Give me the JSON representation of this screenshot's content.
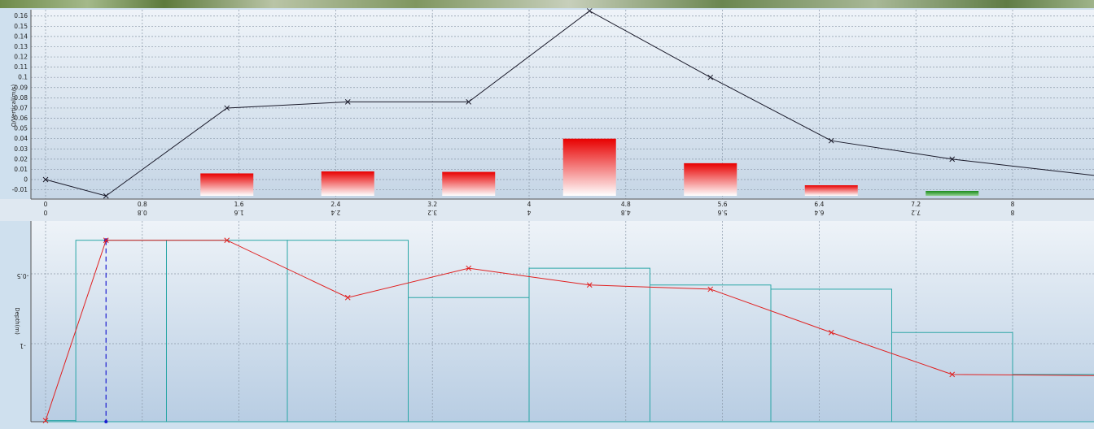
{
  "chart_data": [
    {
      "type": "line+bar",
      "ylabel": "Q/Vertical(m/s)",
      "xlim": [
        0,
        9.6
      ],
      "ylim": [
        -0.018,
        0.165
      ],
      "grid": true,
      "x_ticks": [
        "0",
        "0.8",
        "1.6",
        "2.4",
        "3.2",
        "4",
        "4.8",
        "5.6",
        "6.4",
        "7.2",
        "8"
      ],
      "y_ticks": [
        "-0.01",
        "0",
        "0.01",
        "0.02",
        "0.03",
        "0.04",
        "0.05",
        "0.06",
        "0.07",
        "0.08",
        "0.09",
        "0.1",
        "0.11",
        "0.12",
        "0.13",
        "0.14",
        "0.15",
        "0.16"
      ],
      "line": {
        "color": "#1a1a2a",
        "x": [
          0,
          0.5,
          1.5,
          2.5,
          3.5,
          4.5,
          5.5,
          6.5,
          7.5,
          8.9,
          9.0
        ],
        "y": [
          0.0,
          -0.016,
          0.07,
          0.076,
          0.076,
          0.165,
          0.1,
          0.038,
          0.02,
          0.001,
          0.0
        ]
      },
      "bars": {
        "x": [
          1.5,
          2.5,
          3.5,
          4.5,
          5.5,
          6.5,
          7.5
        ],
        "values": [
          0.006,
          0.008,
          0.0075,
          0.04,
          0.016,
          -0.006,
          -0.012
        ],
        "colors": [
          "#e80000",
          "#e80000",
          "#e80000",
          "#e80000",
          "#e80000",
          "#e80000",
          "#1a8a1a"
        ]
      }
    },
    {
      "type": "line+step",
      "ylabel": "Depth(m)",
      "xlim": [
        0,
        9.6
      ],
      "ylim": [
        -2.0,
        0.0
      ],
      "grid": true,
      "x_ticks": [
        "0",
        "0.8",
        "1.6",
        "2.4",
        "3.2",
        "4",
        "4.8",
        "5.6",
        "6.4",
        "7.2",
        "8"
      ],
      "y_ticks": [
        "-0.5",
        "-1"
      ],
      "line": {
        "color": "#e02020",
        "x": [
          0,
          0.5,
          1.5,
          2.5,
          3.5,
          4.5,
          5.5,
          6.5,
          7.5,
          8.9,
          9.0
        ],
        "y": [
          -1.55,
          -0.26,
          -0.26,
          -0.67,
          -0.46,
          -0.58,
          -0.61,
          -0.92,
          -1.22,
          -1.23,
          -1.55
        ]
      },
      "steps": {
        "color": "#2aa6a6",
        "edges": [
          0,
          0.25,
          1.0,
          2.0,
          3.0,
          4.0,
          5.0,
          6.0,
          7.0,
          8.0,
          8.95,
          9.0
        ],
        "depths": [
          -1.55,
          -0.26,
          -0.26,
          -0.26,
          -0.67,
          -0.46,
          -0.58,
          -0.61,
          -0.92,
          -1.22,
          -1.23
        ]
      },
      "marker": {
        "x": 0.5,
        "y": -0.26,
        "color": "#1c1cd0"
      }
    }
  ]
}
